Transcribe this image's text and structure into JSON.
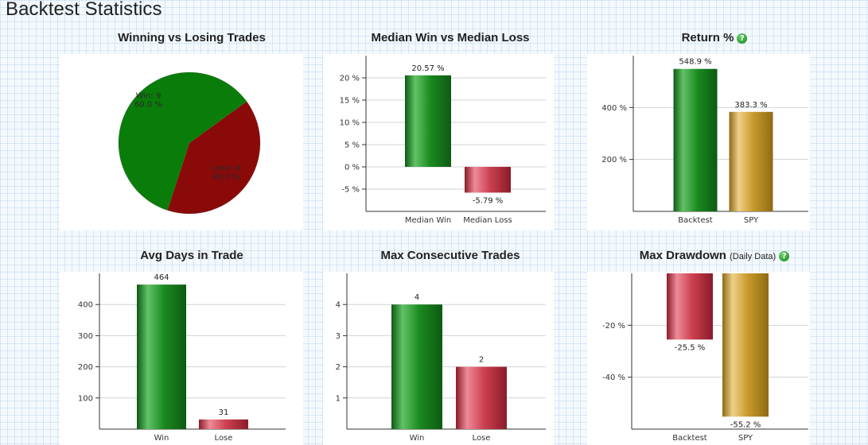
{
  "page": {
    "title": "Backtest Statistics"
  },
  "colors": {
    "green": "#1a8a1f",
    "green_light": "#62c266",
    "green_dark": "#0d5a12",
    "red": "#cc4050",
    "red_light": "#ee8a98",
    "red_dark": "#8a1b2a",
    "gold": "#c89a2a",
    "gold_light": "#efd089",
    "gold_dark": "#8e6a14",
    "pie_win": "#0a7c0a",
    "pie_lose": "#8a0a0a",
    "grid": "#cfd3d6",
    "axis": "#333333"
  },
  "panels": [
    {
      "id": "win-lose",
      "title": "Winning vs Losing Trades",
      "help": false,
      "chart_data": {
        "type": "pie",
        "slices": [
          {
            "name": "Win",
            "count": 9,
            "percent": 60.0,
            "label_line1": "Win: 9",
            "label_line2": "60.0 %",
            "color_key": "pie_win"
          },
          {
            "name": "Lose",
            "count": 6,
            "percent": 40.0,
            "label_line1": "Lose: 6",
            "label_line2": "40.0 %",
            "color_key": "pie_lose"
          }
        ]
      }
    },
    {
      "id": "median-win-loss",
      "title": "Median Win vs Median Loss",
      "help": false,
      "chart_data": {
        "type": "bar",
        "categories": [
          "Median Win",
          "Median Loss"
        ],
        "values": [
          20.57,
          -5.79
        ],
        "value_labels": [
          "20.57 %",
          "-5.79 %"
        ],
        "color_keys": [
          "green",
          "red"
        ],
        "yticks": [
          -5,
          0,
          5,
          10,
          15,
          20
        ],
        "ytick_labels": [
          "-5 %",
          "0 %",
          "5 %",
          "10 %",
          "15 %",
          "20 %"
        ],
        "ylim": [
          -10,
          25
        ]
      }
    },
    {
      "id": "return",
      "title": "Return %",
      "help": true,
      "chart_data": {
        "type": "bar",
        "categories": [
          "Backtest",
          "SPY"
        ],
        "values": [
          548.9,
          383.3
        ],
        "value_labels": [
          "548.9 %",
          "383.3 %"
        ],
        "color_keys": [
          "green",
          "gold"
        ],
        "yticks": [
          200,
          400
        ],
        "ytick_labels": [
          "200 %",
          "400 %"
        ],
        "ylim": [
          0,
          600
        ]
      }
    },
    {
      "id": "avg-days",
      "title": "Avg Days in Trade",
      "help": false,
      "chart_data": {
        "type": "bar",
        "categories": [
          "Win",
          "Lose"
        ],
        "values": [
          464,
          31
        ],
        "value_labels": [
          "464",
          "31"
        ],
        "color_keys": [
          "green",
          "red"
        ],
        "yticks": [
          100,
          200,
          300,
          400
        ],
        "ytick_labels": [
          "100",
          "200",
          "300",
          "400"
        ],
        "ylim": [
          0,
          500
        ]
      }
    },
    {
      "id": "max-consecutive",
      "title": "Max Consecutive Trades",
      "help": false,
      "chart_data": {
        "type": "bar",
        "categories": [
          "Win",
          "Lose"
        ],
        "values": [
          4,
          2
        ],
        "value_labels": [
          "4",
          "2"
        ],
        "color_keys": [
          "green",
          "red"
        ],
        "yticks": [
          1,
          2,
          3,
          4
        ],
        "ytick_labels": [
          "1",
          "2",
          "3",
          "4"
        ],
        "ylim": [
          0,
          5
        ]
      }
    },
    {
      "id": "max-drawdown",
      "title": "Max Drawdown",
      "subtitle": "(Daily Data)",
      "help": true,
      "chart_data": {
        "type": "bar",
        "categories": [
          "Backtest",
          "SPY"
        ],
        "values": [
          -25.5,
          -55.2
        ],
        "value_labels": [
          "-25.5 %",
          "-55.2 %"
        ],
        "color_keys": [
          "red",
          "gold"
        ],
        "yticks": [
          -40,
          -20
        ],
        "ytick_labels": [
          "-40 %",
          "-20 %"
        ],
        "ylim": [
          -60,
          0
        ]
      }
    }
  ]
}
